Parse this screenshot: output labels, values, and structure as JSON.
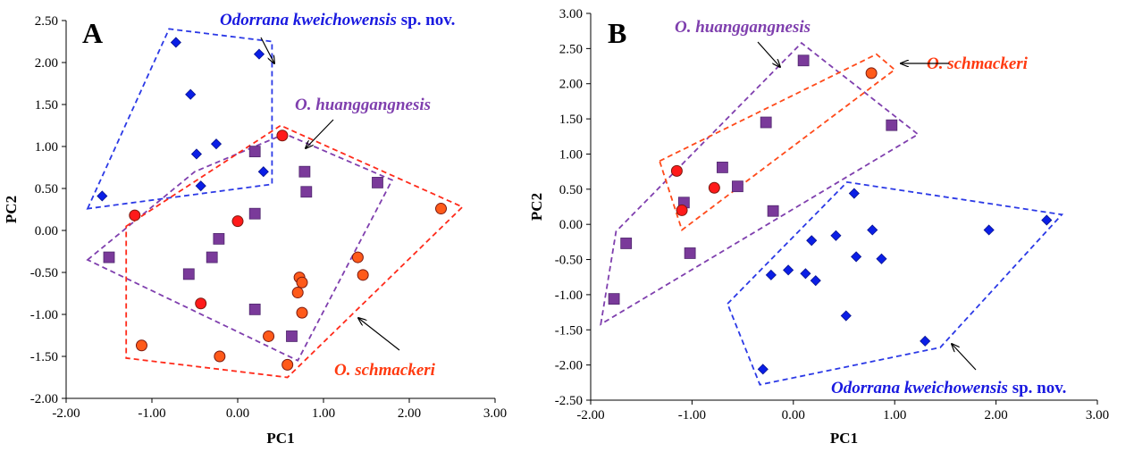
{
  "colors": {
    "red_fill": "#ff1a1a",
    "orange_fill": "#ff5a1a",
    "purple_fill": "#7a3a9a",
    "purple_edge": "#50286e",
    "blue_fill": "#0a1ee6",
    "poly_blue": "#2b39e6",
    "poly_purple": "#7f3fae",
    "poly_red": "#ff2a1a",
    "poly_orange": "#ff4a1a",
    "label_blue": "#1a1ae0",
    "label_purple": "#7f3fae",
    "label_red": "#ff3a10"
  },
  "chart_data": [
    {
      "type": "scatter",
      "panel_label": "A",
      "xlabel": "PC1",
      "ylabel": "PC2",
      "xlim": [
        -2.0,
        3.0
      ],
      "ylim": [
        -2.0,
        2.5
      ],
      "xticks": [
        "-2.00",
        "-1.00",
        "0.00",
        "1.00",
        "2.00",
        "3.00"
      ],
      "yticks": [
        "-2.00",
        "-1.50",
        "-1.00",
        "-0.50",
        "0.00",
        "0.50",
        "1.00",
        "1.50",
        "2.00",
        "2.50"
      ],
      "series": [
        {
          "name": "Odorrana kweichowensis sp. nov.",
          "marker": "diamond",
          "color": "blue",
          "points": [
            [
              -0.72,
              2.24
            ],
            [
              0.25,
              2.1
            ],
            [
              -0.55,
              1.62
            ],
            [
              -0.25,
              1.03
            ],
            [
              -0.48,
              0.91
            ],
            [
              0.3,
              0.7
            ],
            [
              -0.43,
              0.53
            ],
            [
              -1.58,
              0.41
            ]
          ]
        },
        {
          "name": "O. huanggangnesis",
          "marker": "square",
          "color": "purple",
          "points": [
            [
              0.2,
              0.94
            ],
            [
              0.78,
              0.7
            ],
            [
              0.8,
              0.46
            ],
            [
              1.63,
              0.57
            ],
            [
              0.2,
              0.2
            ],
            [
              -0.22,
              -0.1
            ],
            [
              -0.3,
              -0.32
            ],
            [
              -0.57,
              -0.52
            ],
            [
              -1.5,
              -0.32
            ],
            [
              0.2,
              -0.94
            ],
            [
              0.63,
              -1.26
            ]
          ]
        },
        {
          "name": "O. schmackeri",
          "marker": "circle",
          "color": "red",
          "points": [
            [
              0.52,
              1.13
            ],
            [
              -1.2,
              0.18
            ],
            [
              0.0,
              0.11
            ],
            [
              2.37,
              0.26
            ],
            [
              1.4,
              -0.32
            ],
            [
              1.46,
              -0.53
            ],
            [
              0.72,
              -0.56
            ],
            [
              0.75,
              -0.62
            ],
            [
              0.7,
              -0.74
            ],
            [
              0.75,
              -0.98
            ],
            [
              -0.43,
              -0.87
            ],
            [
              0.36,
              -1.26
            ],
            [
              -1.12,
              -1.37
            ],
            [
              -0.21,
              -1.5
            ],
            [
              0.58,
              -1.6
            ]
          ]
        }
      ],
      "hulls": [
        {
          "group": "blue",
          "points": [
            [
              -1.75,
              0.26
            ],
            [
              -0.8,
              2.4
            ],
            [
              0.4,
              2.25
            ],
            [
              0.4,
              0.55
            ]
          ]
        },
        {
          "group": "purple",
          "points": [
            [
              -1.75,
              -0.35
            ],
            [
              -0.5,
              0.7
            ],
            [
              0.55,
              1.15
            ],
            [
              1.8,
              0.6
            ],
            [
              0.7,
              -1.55
            ]
          ]
        },
        {
          "group": "red",
          "points": [
            [
              -1.3,
              0.05
            ],
            [
              0.5,
              1.25
            ],
            [
              2.62,
              0.28
            ],
            [
              0.58,
              -1.75
            ],
            [
              -1.3,
              -1.52
            ]
          ]
        }
      ],
      "annotations": [
        {
          "text_italic": "Odorrana kweichowensis",
          "text_plain": " sp. nov.",
          "color": "blue"
        },
        {
          "text_italic": "O. huanggangnesis",
          "text_plain": "",
          "color": "purple"
        },
        {
          "text_italic": "O. schmackeri",
          "text_plain": "",
          "color": "red"
        }
      ]
    },
    {
      "type": "scatter",
      "panel_label": "B",
      "xlabel": "PC1",
      "ylabel": "PC2",
      "xlim": [
        -2.0,
        3.0
      ],
      "ylim": [
        -2.5,
        3.0
      ],
      "xticks": [
        "-2.00",
        "-1.00",
        "0.00",
        "1.00",
        "2.00",
        "3.00"
      ],
      "yticks": [
        "-2.50",
        "-2.00",
        "-1.50",
        "-1.00",
        "-0.50",
        "0.00",
        "0.50",
        "1.00",
        "1.50",
        "2.00",
        "2.50",
        "3.00"
      ],
      "series": [
        {
          "name": "Odorrana kweichowensis sp. nov.",
          "marker": "diamond",
          "color": "blue",
          "points": [
            [
              0.6,
              0.44
            ],
            [
              2.5,
              0.06
            ],
            [
              1.93,
              -0.08
            ],
            [
              0.78,
              -0.08
            ],
            [
              0.42,
              -0.16
            ],
            [
              0.18,
              -0.23
            ],
            [
              0.62,
              -0.46
            ],
            [
              0.87,
              -0.49
            ],
            [
              -0.05,
              -0.65
            ],
            [
              0.12,
              -0.7
            ],
            [
              -0.22,
              -0.72
            ],
            [
              0.22,
              -0.8
            ],
            [
              0.52,
              -1.3
            ],
            [
              1.3,
              -1.66
            ],
            [
              -0.3,
              -2.06
            ]
          ]
        },
        {
          "name": "O. huanggangnesis",
          "marker": "square",
          "color": "purple",
          "points": [
            [
              0.1,
              2.33
            ],
            [
              -0.27,
              1.45
            ],
            [
              0.97,
              1.41
            ],
            [
              -0.7,
              0.81
            ],
            [
              -0.55,
              0.54
            ],
            [
              -1.08,
              0.31
            ],
            [
              -0.2,
              0.19
            ],
            [
              -1.65,
              -0.27
            ],
            [
              -1.02,
              -0.41
            ],
            [
              -1.77,
              -1.06
            ]
          ]
        },
        {
          "name": "O. schmackeri",
          "marker": "circle",
          "color": "red",
          "points": [
            [
              0.77,
              2.15
            ],
            [
              -1.15,
              0.76
            ],
            [
              -0.78,
              0.52
            ],
            [
              -1.1,
              0.2
            ]
          ]
        }
      ],
      "hulls": [
        {
          "group": "purple",
          "points": [
            [
              -1.9,
              -1.42
            ],
            [
              -1.75,
              -0.1
            ],
            [
              0.08,
              2.58
            ],
            [
              1.23,
              1.28
            ]
          ]
        },
        {
          "group": "orange",
          "points": [
            [
              -1.32,
              0.9
            ],
            [
              0.82,
              2.42
            ],
            [
              1.0,
              2.2
            ],
            [
              -1.1,
              -0.08
            ]
          ]
        },
        {
          "group": "blue",
          "points": [
            [
              -0.65,
              -1.13
            ],
            [
              0.53,
              0.6
            ],
            [
              2.65,
              0.14
            ],
            [
              1.45,
              -1.75
            ],
            [
              -0.33,
              -2.28
            ]
          ]
        }
      ],
      "annotations": [
        {
          "text_italic": "O. huanggangnesis",
          "text_plain": "",
          "color": "purple"
        },
        {
          "text_italic": "O. schmackeri",
          "text_plain": "",
          "color": "red"
        },
        {
          "text_italic": "Odorrana kweichowensis",
          "text_plain": " sp. nov.",
          "color": "blue"
        }
      ]
    }
  ]
}
